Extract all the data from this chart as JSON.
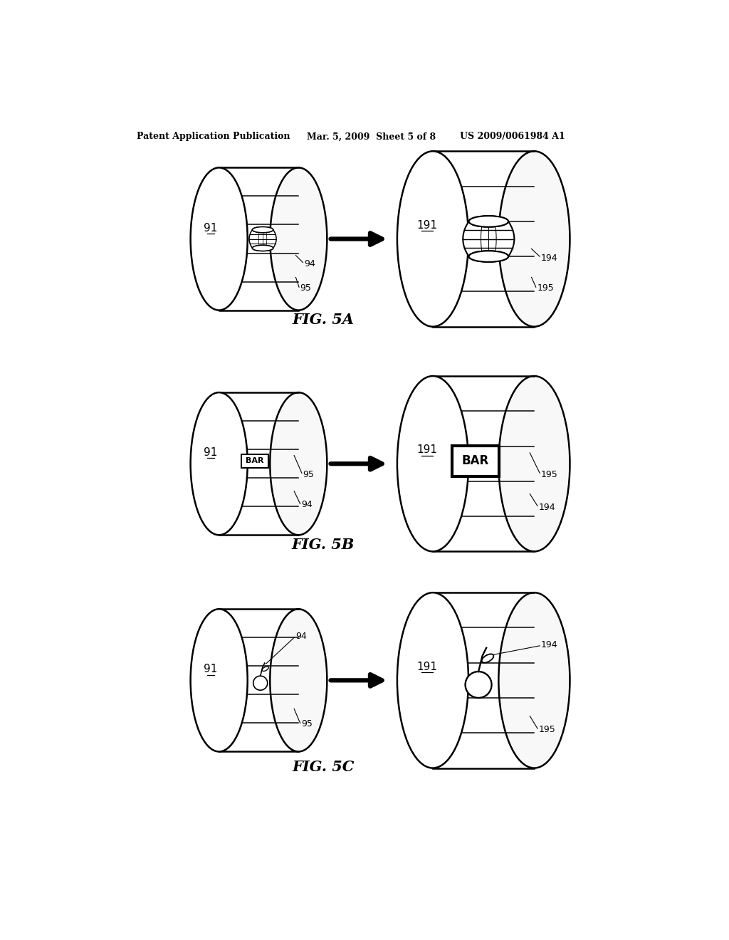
{
  "header_left": "Patent Application Publication",
  "header_mid": "Mar. 5, 2009  Sheet 5 of 8",
  "header_right": "US 2009/0061984 A1",
  "fig5a_label": "FIG. 5A",
  "fig5b_label": "FIG. 5B",
  "fig5c_label": "FIG. 5C",
  "background_color": "#ffffff",
  "line_color": "#000000"
}
